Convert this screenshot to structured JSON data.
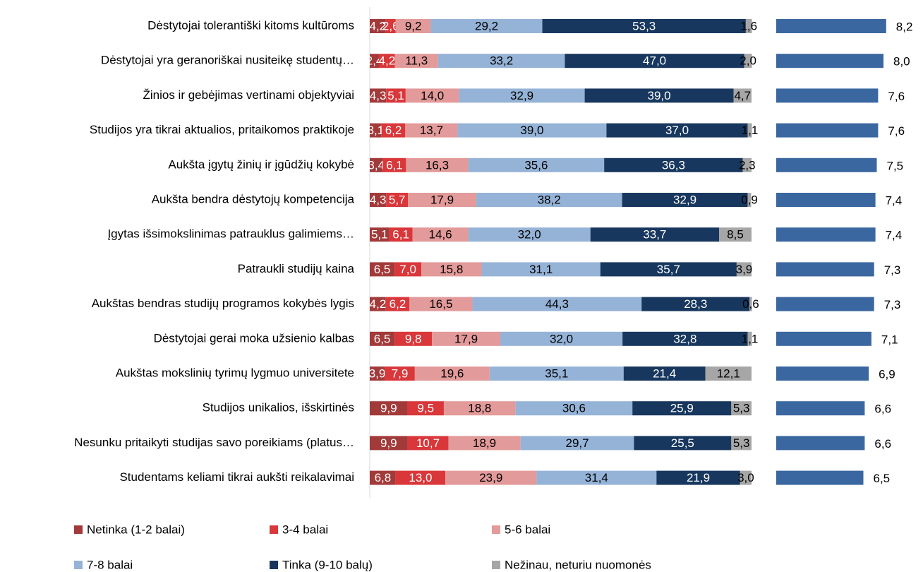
{
  "chart_data": [
    {
      "type": "stacked_bar_horizontal",
      "categories": [
        "Dėstytojai tolerantiški kitoms kultūroms",
        "Dėstytojai yra geranoriškai nusiteikę studentų…",
        "Žinios ir gebėjimas vertinami objektyviai",
        "Studijos yra tikrai aktualios, pritaikomos praktikoje",
        "Aukšta įgytų žinių ir įgūdžių kokybė",
        "Aukšta bendra dėstytojų kompetencija",
        "Įgytas išsimokslinimas patrauklus galimiems…",
        "Patraukli studijų kaina",
        "Aukštas bendras studijų programos kokybės lygis",
        "Dėstytojai gerai moka užsienio kalbas",
        "Aukštas mokslinių tyrimų lygmuo universitete",
        "Studijos unikalios, išskirtinės",
        "Nesunku pritaikyti studijas savo poreikiams (platus…",
        "Studentams keliami tikrai aukšti reikalavimai"
      ],
      "series": [
        {
          "name": "Netinka (1-2 balai)",
          "color": "#a33a3a",
          "values": [
            4.2,
            2.4,
            4.3,
            3.1,
            3.4,
            4.3,
            5.1,
            6.5,
            4.2,
            6.5,
            3.9,
            9.9,
            9.9,
            6.8
          ],
          "value_labels": [
            "4,2",
            "2,4",
            "4,3",
            "3,1",
            "3,4",
            "4,3",
            "5,1",
            "6,5",
            "4,2",
            "6,5",
            "3,9",
            "9,9",
            "9,9",
            "6,8"
          ]
        },
        {
          "name": "3-4 balai",
          "color": "#d9373a",
          "values": [
            2.6,
            4.2,
            5.1,
            6.2,
            6.1,
            5.7,
            6.1,
            7.0,
            6.2,
            9.8,
            7.9,
            9.5,
            10.7,
            13.0
          ],
          "value_labels": [
            "2,6",
            "4,2",
            "5,1",
            "6,2",
            "6,1",
            "5,7",
            "6,1",
            "7,0",
            "6,2",
            "9,8",
            "7,9",
            "9,5",
            "10,7",
            "13,0"
          ]
        },
        {
          "name": "5-6 balai",
          "color": "#e39a9a",
          "values": [
            9.2,
            11.3,
            14.0,
            13.7,
            16.3,
            17.9,
            14.6,
            15.8,
            16.5,
            17.9,
            19.6,
            18.8,
            18.9,
            23.9
          ],
          "value_labels": [
            "9,2",
            "11,3",
            "14,0",
            "13,7",
            "16,3",
            "17,9",
            "14,6",
            "15,8",
            "16,5",
            "17,9",
            "19,6",
            "18,8",
            "18,9",
            "23,9"
          ]
        },
        {
          "name": "7-8 balai",
          "color": "#95b3d7",
          "values": [
            29.2,
            33.2,
            32.9,
            39.0,
            35.6,
            38.2,
            32.0,
            31.1,
            44.3,
            32.0,
            35.1,
            30.6,
            29.7,
            31.4
          ],
          "value_labels": [
            "29,2",
            "33,2",
            "32,9",
            "39,0",
            "35,6",
            "38,2",
            "32,0",
            "31,1",
            "44,3",
            "32,0",
            "35,1",
            "30,6",
            "29,7",
            "31,4"
          ]
        },
        {
          "name": "Tinka (9-10 balų)",
          "color": "#17375e",
          "values": [
            53.3,
            47.0,
            39.0,
            37.0,
            36.3,
            32.9,
            33.7,
            35.7,
            28.3,
            32.8,
            21.4,
            25.9,
            25.5,
            21.9
          ],
          "value_labels": [
            "53,3",
            "47,0",
            "39,0",
            "37,0",
            "36,3",
            "32,9",
            "33,7",
            "35,7",
            "28,3",
            "32,8",
            "21,4",
            "25,9",
            "25,5",
            "21,9"
          ]
        },
        {
          "name": "Nežinau, neturiu nuomonės",
          "color": "#a6a6a6",
          "values": [
            1.6,
            2.0,
            4.7,
            1.1,
            2.3,
            0.9,
            8.5,
            3.9,
            0.6,
            1.1,
            12.1,
            5.3,
            5.3,
            3.0
          ],
          "value_labels": [
            "1,6",
            "2,0",
            "4,7",
            "1,1",
            "2,3",
            "0,9",
            "8,5",
            "3,9",
            "0,6",
            "1,1",
            "12,1",
            "5,3",
            "5,3",
            "3,0"
          ]
        }
      ]
    },
    {
      "type": "bar_horizontal",
      "color": "#3a67a0",
      "values": [
        8.2,
        8.0,
        7.6,
        7.6,
        7.5,
        7.4,
        7.4,
        7.3,
        7.3,
        7.1,
        6.9,
        6.6,
        6.6,
        6.5
      ],
      "value_labels": [
        "8,2",
        "8,0",
        "7,6",
        "7,6",
        "7,5",
        "7,4",
        "7,4",
        "7,3",
        "7,3",
        "7,1",
        "6,9",
        "6,6",
        "6,6",
        "6,5"
      ]
    }
  ]
}
